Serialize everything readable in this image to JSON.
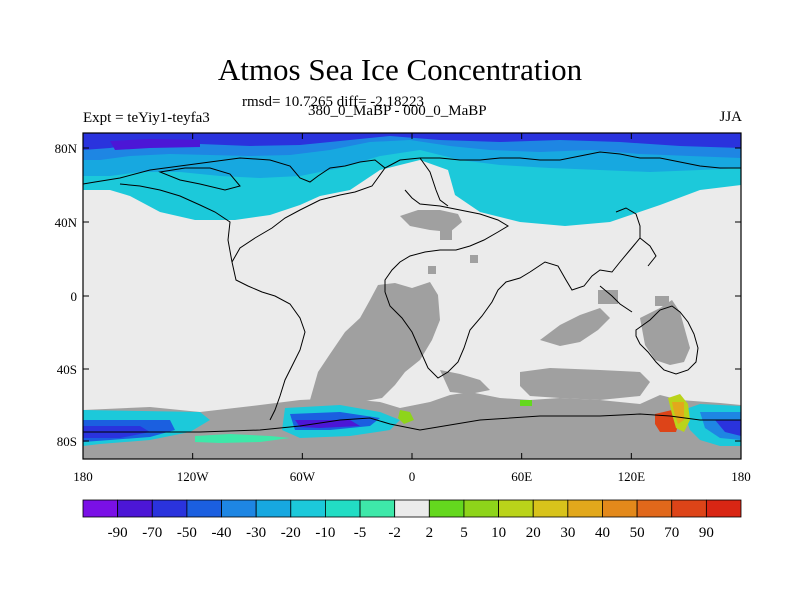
{
  "title": "Atmos Sea Ice Concentration",
  "rmsd_text": "rmsd= 10.7265 diff= -2.18223",
  "expt_text": "Expt = teYiy1-teyfa3",
  "subtitle": "380_0_MaBP - 000_0_MaBP",
  "season": "JJA",
  "x_ticks": [
    "180",
    "120W",
    "60W",
    "0",
    "60E",
    "120E",
    "180"
  ],
  "y_ticks": [
    "80N",
    "40N",
    "0",
    "40S",
    "80S"
  ],
  "colorbar": {
    "labels": [
      "-90",
      "-70",
      "-50",
      "-40",
      "-30",
      "-20",
      "-10",
      "-5",
      "-2",
      "2",
      "5",
      "10",
      "20",
      "30",
      "40",
      "50",
      "70",
      "90"
    ],
    "colors": [
      "#7a10e6",
      "#4c16d6",
      "#2a33dd",
      "#1b5fe0",
      "#1e86e3",
      "#17a8e0",
      "#1cc9da",
      "#22ddc4",
      "#3ee8a9",
      "#ebebeb",
      "#64d81e",
      "#8ed41a",
      "#bad31a",
      "#d8c31b",
      "#e2a81c",
      "#e3891b",
      "#e1681b",
      "#dd4418",
      "#d92614"
    ]
  },
  "colors": {
    "land": "#ebebeb",
    "ocean_grey": "#a0a0a0",
    "coast": "#000000"
  }
}
